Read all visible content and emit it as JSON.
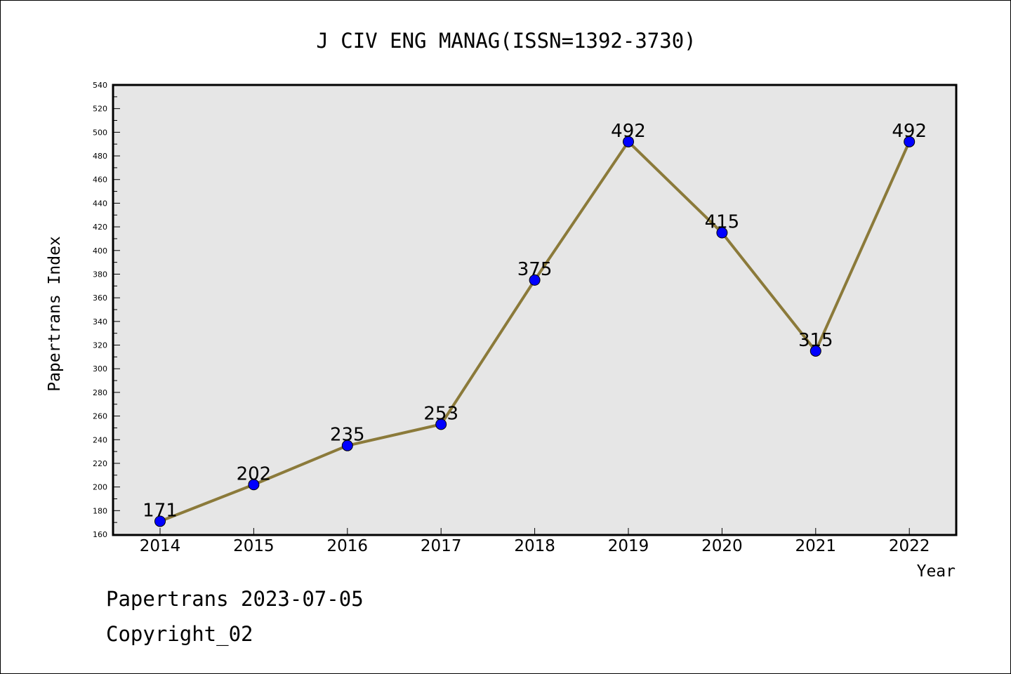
{
  "chart_data": {
    "type": "line",
    "title": "J CIV ENG MANAG(ISSN=1392-3730)",
    "xlabel": "Year",
    "ylabel": "Papertrans Index",
    "categories": [
      "2014",
      "2015",
      "2016",
      "2017",
      "2018",
      "2019",
      "2020",
      "2021",
      "2022"
    ],
    "series": [
      {
        "values": [
          171,
          202,
          235,
          253,
          375,
          492,
          415,
          315,
          492
        ]
      }
    ],
    "ylim": [
      160,
      540
    ],
    "ytick_step": 20,
    "grid": false,
    "legend": "none",
    "colors": {
      "line": "#8b7a3a",
      "marker": "#0000ff",
      "plot_background": "#e6e6e6"
    }
  },
  "footer": {
    "line1": "Papertrans 2023-07-05",
    "line2": "Copyright_02"
  }
}
